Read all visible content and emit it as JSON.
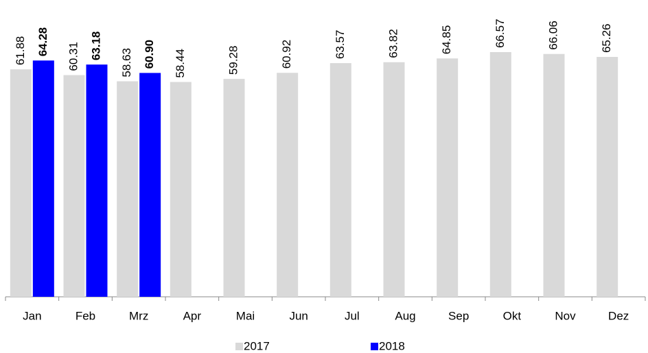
{
  "chart_data": {
    "type": "bar",
    "categories": [
      "Jan",
      "Feb",
      "Mrz",
      "Apr",
      "Mai",
      "Jun",
      "Jul",
      "Aug",
      "Sep",
      "Okt",
      "Nov",
      "Dez"
    ],
    "series": [
      {
        "name": "2017",
        "color": "#d9d9d9",
        "values": [
          61.88,
          60.31,
          58.63,
          58.44,
          59.28,
          60.92,
          63.57,
          63.82,
          64.85,
          66.57,
          66.06,
          65.26
        ]
      },
      {
        "name": "2018",
        "color": "#0000ff",
        "values": [
          64.28,
          63.18,
          60.9,
          null,
          null,
          null,
          null,
          null,
          null,
          null,
          null,
          null
        ],
        "value_labels": [
          "64.28",
          "63.18",
          "60.90",
          null,
          null,
          null,
          null,
          null,
          null,
          null,
          null,
          null
        ]
      }
    ],
    "legend": "bottom"
  }
}
